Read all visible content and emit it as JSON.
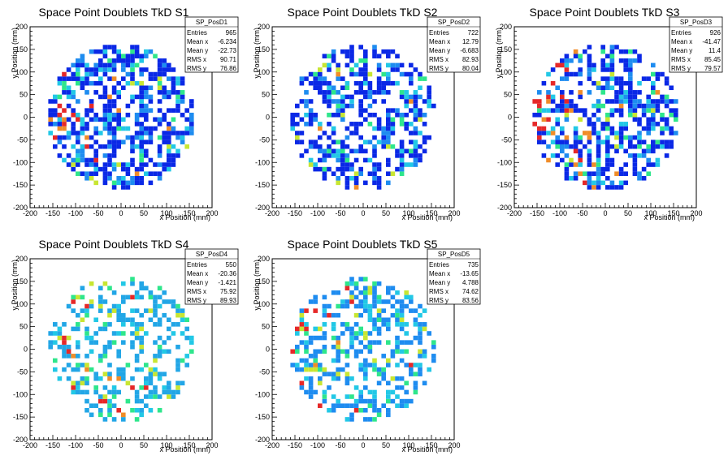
{
  "chart_data": [
    {
      "type": "heatmap",
      "title": "Space Point Doublets TkD S1",
      "xlabel": "x Position (mm)",
      "ylabel": "y Position (mm)",
      "xlim": [
        -200,
        200
      ],
      "ylim": [
        -200,
        200
      ],
      "xticks": [
        "-200",
        "-150",
        "-100",
        "-50",
        "0",
        "50",
        "100",
        "150",
        "200"
      ],
      "yticks": [
        "-200",
        "-150",
        "-100",
        "-50",
        "0",
        "50",
        "100",
        "150",
        "200"
      ],
      "radius_mm": 160,
      "bin_mm": 10,
      "palette": [
        "#0a28e6",
        "#1e8cf0",
        "#22c8e6",
        "#2ee68c",
        "#c8e632",
        "#f08c28",
        "#e62828"
      ],
      "stats": {
        "name": "SP_PosD1",
        "rows": [
          {
            "label": "Entries",
            "value": "965"
          },
          {
            "label": "Mean x",
            "value": "-6.234"
          },
          {
            "label": "Mean y",
            "value": "-22.73"
          },
          {
            "label": "RMS x",
            "value": "90.71"
          },
          {
            "label": "RMS y",
            "value": "76.86"
          }
        ]
      }
    },
    {
      "type": "heatmap",
      "title": "Space Point Doublets TkD S2",
      "xlabel": "x Position (mm)",
      "ylabel": "y Position (mm)",
      "xlim": [
        -200,
        200
      ],
      "ylim": [
        -200,
        200
      ],
      "xticks": [
        "-200",
        "-150",
        "-100",
        "-50",
        "0",
        "50",
        "100",
        "150",
        "200"
      ],
      "yticks": [
        "-200",
        "-150",
        "-100",
        "-50",
        "0",
        "50",
        "100",
        "150",
        "200"
      ],
      "radius_mm": 160,
      "bin_mm": 10,
      "palette": [
        "#0a28e6",
        "#1e8cf0",
        "#22c8e6",
        "#2ee68c",
        "#c8e632",
        "#f08c28",
        "#e62828"
      ],
      "stats": {
        "name": "SP_PosD2",
        "rows": [
          {
            "label": "Entries",
            "value": "722"
          },
          {
            "label": "Mean x",
            "value": "12.79"
          },
          {
            "label": "Mean y",
            "value": "-6.683"
          },
          {
            "label": "RMS x",
            "value": "82.93"
          },
          {
            "label": "RMS y",
            "value": "80.04"
          }
        ]
      }
    },
    {
      "type": "heatmap",
      "title": "Space Point Doublets TkD S3",
      "xlabel": "x Position (mm)",
      "ylabel": "y Position (mm)",
      "xlim": [
        -200,
        200
      ],
      "ylim": [
        -200,
        200
      ],
      "xticks": [
        "-200",
        "-150",
        "-100",
        "-50",
        "0",
        "50",
        "100",
        "150",
        "200"
      ],
      "yticks": [
        "-200",
        "-150",
        "-100",
        "-50",
        "0",
        "50",
        "100",
        "150",
        "200"
      ],
      "radius_mm": 160,
      "bin_mm": 10,
      "palette": [
        "#0a28e6",
        "#1e8cf0",
        "#22c8e6",
        "#2ee68c",
        "#c8e632",
        "#f08c28",
        "#e62828"
      ],
      "stats": {
        "name": "SP_PosD3",
        "rows": [
          {
            "label": "Entries",
            "value": "926"
          },
          {
            "label": "Mean x",
            "value": "-41.47"
          },
          {
            "label": "Mean y",
            "value": "11.4"
          },
          {
            "label": "RMS x",
            "value": "85.45"
          },
          {
            "label": "RMS y",
            "value": "79.57"
          }
        ]
      }
    },
    {
      "type": "heatmap",
      "title": "Space Point Doublets TkD S4",
      "xlabel": "x Position (mm)",
      "ylabel": "y Position (mm)",
      "xlim": [
        -200,
        200
      ],
      "ylim": [
        -200,
        200
      ],
      "xticks": [
        "-200",
        "-150",
        "-100",
        "-50",
        "0",
        "50",
        "100",
        "150",
        "200"
      ],
      "yticks": [
        "-200",
        "-150",
        "-100",
        "-50",
        "0",
        "50",
        "100",
        "150",
        "200"
      ],
      "radius_mm": 160,
      "bin_mm": 10,
      "palette": [
        "#22a6e6",
        "#22c8e6",
        "#2ee68c",
        "#c8e632",
        "#f08c28",
        "#e62828"
      ],
      "stats": {
        "name": "SP_PosD4",
        "rows": [
          {
            "label": "Entries",
            "value": "550"
          },
          {
            "label": "Mean x",
            "value": "-20.36"
          },
          {
            "label": "Mean y",
            "value": "-1.421"
          },
          {
            "label": "RMS x",
            "value": "75.92"
          },
          {
            "label": "RMS y",
            "value": "89.93"
          }
        ]
      }
    },
    {
      "type": "heatmap",
      "title": "Space Point Doublets TkD S5",
      "xlabel": "x Position (mm)",
      "ylabel": "y Position (mm)",
      "xlim": [
        -200,
        200
      ],
      "ylim": [
        -200,
        200
      ],
      "xticks": [
        "-200",
        "-150",
        "-100",
        "-50",
        "0",
        "50",
        "100",
        "150",
        "200"
      ],
      "yticks": [
        "-200",
        "-150",
        "-100",
        "-50",
        "0",
        "50",
        "100",
        "150",
        "200"
      ],
      "radius_mm": 160,
      "bin_mm": 10,
      "palette": [
        "#1e8cf0",
        "#22c8e6",
        "#2ee68c",
        "#c8e632",
        "#f08c28",
        "#e62828"
      ],
      "stats": {
        "name": "SP_PosD5",
        "rows": [
          {
            "label": "Entries",
            "value": "735"
          },
          {
            "label": "Mean x",
            "value": "-13.65"
          },
          {
            "label": "Mean y",
            "value": "4.788"
          },
          {
            "label": "RMS x",
            "value": "74.62"
          },
          {
            "label": "RMS y",
            "value": "83.56"
          }
        ]
      }
    }
  ]
}
